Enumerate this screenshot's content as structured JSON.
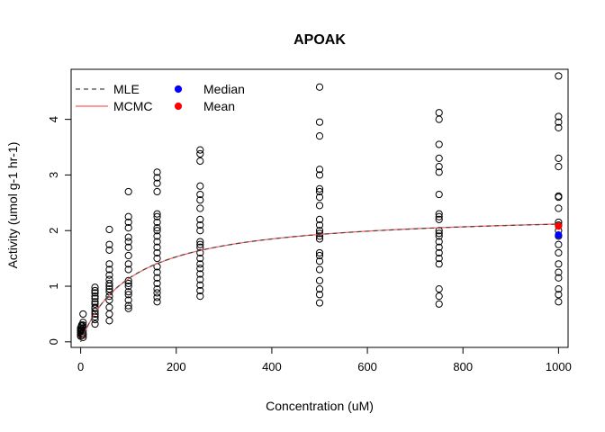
{
  "chart_data": {
    "type": "scatter",
    "title": "APOAK",
    "xlabel": "Concentration (uM)",
    "ylabel": "Activity (umol g-1 hr-1)",
    "xlim": [
      -20,
      1020
    ],
    "ylim": [
      -0.1,
      4.9
    ],
    "xticks": [
      0,
      200,
      400,
      600,
      800,
      1000
    ],
    "yticks": [
      0,
      1,
      2,
      3,
      4
    ],
    "grid": false,
    "legend_position": "top-left",
    "legend": [
      {
        "label": "MLE",
        "kind": "line",
        "style": "dashed",
        "color": "#444444"
      },
      {
        "label": "MCMC",
        "kind": "line",
        "style": "solid",
        "color": "#ff5a5a"
      },
      {
        "label": "Median",
        "kind": "point",
        "color": "#0000ff"
      },
      {
        "label": "Mean",
        "kind": "point",
        "color": "#ff0000"
      }
    ],
    "observations": [
      {
        "x": 0,
        "y": [
          0.1,
          0.12,
          0.15,
          0.18,
          0.2,
          0.22,
          0.25
        ]
      },
      {
        "x": 2,
        "y": [
          0.15,
          0.2,
          0.22,
          0.28,
          0.3
        ]
      },
      {
        "x": 5,
        "y": [
          0.08,
          0.12,
          0.15,
          0.2,
          0.25,
          0.3,
          0.35,
          0.5
        ]
      },
      {
        "x": 30,
        "y": [
          0.32,
          0.4,
          0.45,
          0.5,
          0.55,
          0.6,
          0.62,
          0.68,
          0.72,
          0.78,
          0.82,
          0.88,
          0.92,
          0.98
        ]
      },
      {
        "x": 60,
        "y": [
          0.38,
          0.5,
          0.62,
          0.75,
          0.82,
          0.9,
          0.95,
          1.0,
          1.05,
          1.12,
          1.2,
          1.3,
          1.4,
          1.65,
          1.75,
          2.02
        ]
      },
      {
        "x": 100,
        "y": [
          0.6,
          0.65,
          0.75,
          0.85,
          0.9,
          1.0,
          1.05,
          1.1,
          1.3,
          1.4,
          1.55,
          1.7,
          1.8,
          1.88,
          2.05,
          2.15,
          2.25,
          2.7
        ]
      },
      {
        "x": 160,
        "y": [
          0.72,
          0.8,
          0.88,
          0.95,
          1.05,
          1.15,
          1.25,
          1.35,
          1.5,
          1.6,
          1.7,
          1.8,
          1.9,
          2.0,
          2.05,
          2.15,
          2.25,
          2.3,
          2.7,
          2.85,
          2.95,
          3.05
        ]
      },
      {
        "x": 250,
        "y": [
          0.82,
          0.92,
          1.02,
          1.12,
          1.22,
          1.32,
          1.4,
          1.5,
          1.6,
          1.7,
          1.75,
          1.8,
          2.0,
          2.1,
          2.2,
          2.4,
          2.55,
          2.65,
          2.8,
          3.25,
          3.38,
          3.45
        ]
      },
      {
        "x": 500,
        "y": [
          0.7,
          0.85,
          0.95,
          1.1,
          1.3,
          1.45,
          1.55,
          1.6,
          1.85,
          1.9,
          1.95,
          2.0,
          2.1,
          2.2,
          2.45,
          2.6,
          2.7,
          2.75,
          3.0,
          3.1,
          3.7,
          3.95,
          4.58
        ]
      },
      {
        "x": 750,
        "y": [
          0.68,
          0.82,
          0.95,
          1.4,
          1.5,
          1.6,
          1.7,
          1.8,
          1.9,
          1.95,
          2.0,
          2.2,
          2.25,
          2.3,
          2.65,
          3.05,
          3.15,
          3.3,
          3.55,
          4.0,
          4.12
        ]
      },
      {
        "x": 1000,
        "y": [
          0.72,
          0.85,
          0.95,
          1.15,
          1.25,
          1.4,
          1.6,
          1.75,
          1.9,
          2.0,
          2.1,
          2.15,
          2.4,
          2.6,
          2.62,
          3.15,
          3.3,
          3.85,
          3.95,
          4.05,
          4.78
        ]
      }
    ],
    "fit_curves": {
      "model": "michaelis-menten",
      "mle": {
        "vmax": 2.34,
        "km": 106
      },
      "mcmc": {
        "vmax": 2.345,
        "km": 107
      }
    },
    "summary_points": [
      {
        "label": "Median",
        "x": 1000,
        "y": 1.92,
        "color": "#0000ff"
      },
      {
        "label": "Mean",
        "x": 1000,
        "y": 2.08,
        "color": "#ff0000"
      }
    ]
  }
}
